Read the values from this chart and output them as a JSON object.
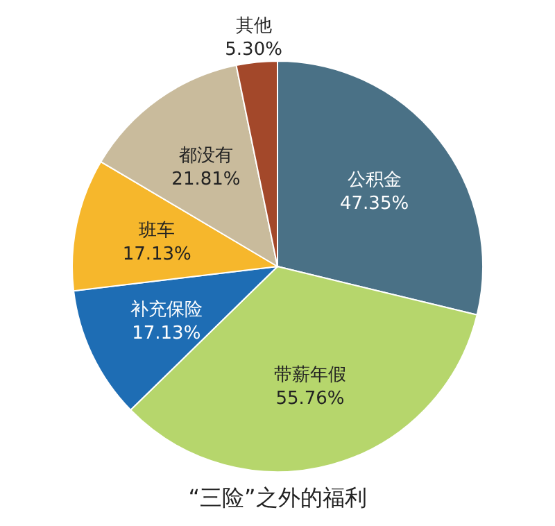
{
  "chart_data": {
    "type": "pie",
    "title": "“三险”之外的福利",
    "categories": [
      "公积金",
      "带薪年假",
      "补充保险",
      "班车",
      "都没有",
      "其他"
    ],
    "values": [
      47.35,
      55.76,
      17.13,
      17.13,
      21.81,
      5.3
    ],
    "colors": [
      "#4a7186",
      "#b6d66c",
      "#1e6db4",
      "#f6b72c",
      "#c9bb9c",
      "#a3482a"
    ],
    "value_labels": [
      "47.35%",
      "55.76%",
      "17.13%",
      "17.13%",
      "21.81%",
      "5.30%"
    ]
  }
}
